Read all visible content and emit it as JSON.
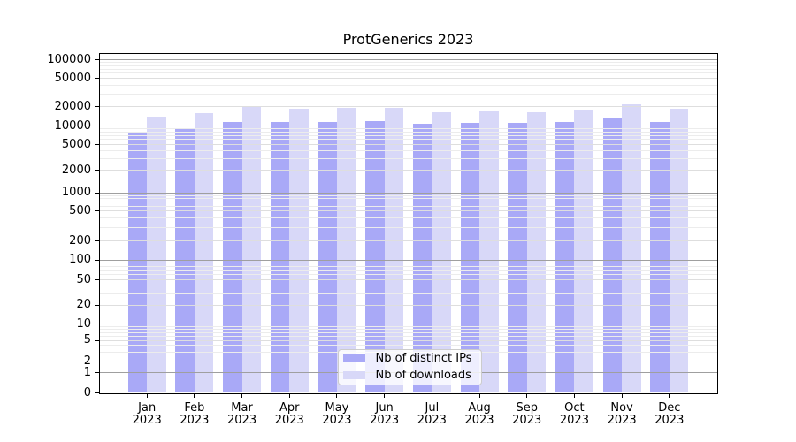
{
  "figure": {
    "background": "#ffffff"
  },
  "chart_data": {
    "type": "bar",
    "title": "ProtGenerics 2023",
    "categories": [
      "Jan",
      "Feb",
      "Mar",
      "Apr",
      "May",
      "Jun",
      "Jul",
      "Aug",
      "Sep",
      "Oct",
      "Nov",
      "Dec"
    ],
    "category_year": "2023",
    "series": [
      {
        "name": "Nb of distinct IPs",
        "color": "#a9a9f7",
        "values": [
          8200,
          9100,
          11400,
          11700,
          11400,
          12000,
          10800,
          11200,
          11100,
          11400,
          13000,
          11500
        ]
      },
      {
        "name": "Nb of downloads",
        "color": "#d8d8f8",
        "values": [
          14000,
          15900,
          20700,
          18400,
          19400,
          19000,
          16500,
          16900,
          16400,
          17300,
          21400,
          18800
        ]
      }
    ],
    "yscale": "symlog",
    "yticks": [
      0,
      1,
      2,
      5,
      10,
      20,
      50,
      100,
      200,
      500,
      1000,
      2000,
      5000,
      10000,
      20000,
      50000,
      100000
    ],
    "ylim": [
      0,
      130000
    ],
    "grid": true,
    "legend": {
      "position": "lower-center",
      "entries": [
        "Nb of distinct IPs",
        "Nb of downloads"
      ]
    }
  }
}
